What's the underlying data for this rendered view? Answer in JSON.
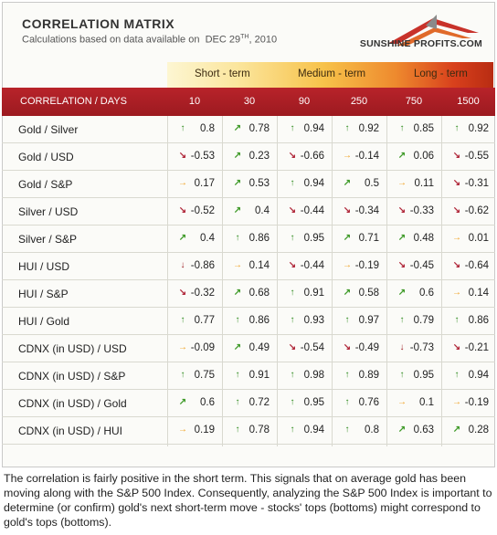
{
  "header": {
    "title": "CORRELATION MATRIX",
    "subtitle_prefix": "Calculations based on data available on",
    "date_main": "DEC 29",
    "date_sup": "TH",
    "date_year": ", 2010",
    "brand": "SUNSHINE PROFITS.COM"
  },
  "horizons": [
    "Short - term",
    "Medium - term",
    "Long - term"
  ],
  "columns": {
    "label": "CORRELATION / DAYS",
    "days": [
      "10",
      "30",
      "90",
      "250",
      "750",
      "1500"
    ]
  },
  "rows": [
    {
      "label": "Gold / Silver",
      "values": [
        "0.8",
        "0.78",
        "0.94",
        "0.92",
        "0.85",
        "0.92"
      ],
      "arrows": [
        "up",
        "up-right",
        "up",
        "up",
        "up",
        "up"
      ]
    },
    {
      "label": "Gold / USD",
      "values": [
        "-0.53",
        "0.23",
        "-0.66",
        "-0.14",
        "0.06",
        "-0.55"
      ],
      "arrows": [
        "down-right",
        "up-right",
        "down-right",
        "right",
        "up-right",
        "down-right"
      ]
    },
    {
      "label": "Gold / S&P",
      "values": [
        "0.17",
        "0.53",
        "0.94",
        "0.5",
        "0.11",
        "-0.31"
      ],
      "arrows": [
        "right",
        "up-right",
        "up",
        "up-right",
        "right",
        "down-right"
      ]
    },
    {
      "label": "Silver / USD",
      "values": [
        "-0.52",
        "0.4",
        "-0.44",
        "-0.34",
        "-0.33",
        "-0.62"
      ],
      "arrows": [
        "down-right",
        "up-right",
        "down-right",
        "down-right",
        "down-right",
        "down-right"
      ]
    },
    {
      "label": "Silver / S&P",
      "values": [
        "0.4",
        "0.86",
        "0.95",
        "0.71",
        "0.48",
        "0.01"
      ],
      "arrows": [
        "up-right",
        "up",
        "up",
        "up-right",
        "up-right",
        "right"
      ]
    },
    {
      "label": "HUI / USD",
      "values": [
        "-0.86",
        "0.14",
        "-0.44",
        "-0.19",
        "-0.45",
        "-0.64"
      ],
      "arrows": [
        "down",
        "right",
        "down-right",
        "right",
        "down-right",
        "down-right"
      ]
    },
    {
      "label": "HUI / S&P",
      "values": [
        "-0.32",
        "0.68",
        "0.91",
        "0.58",
        "0.6",
        "0.14"
      ],
      "arrows": [
        "down-right",
        "up-right",
        "up",
        "up-right",
        "up-right",
        "right"
      ]
    },
    {
      "label": "HUI / Gold",
      "values": [
        "0.77",
        "0.86",
        "0.93",
        "0.97",
        "0.79",
        "0.86"
      ],
      "arrows": [
        "up",
        "up",
        "up",
        "up",
        "up",
        "up"
      ]
    },
    {
      "label": "CDNX (in USD) / USD",
      "values": [
        "-0.09",
        "0.49",
        "-0.54",
        "-0.49",
        "-0.73",
        "-0.21"
      ],
      "arrows": [
        "right",
        "up-right",
        "down-right",
        "down-right",
        "down",
        "down-right"
      ]
    },
    {
      "label": "CDNX (in USD) / S&P",
      "values": [
        "0.75",
        "0.91",
        "0.98",
        "0.89",
        "0.95",
        "0.94"
      ],
      "arrows": [
        "up",
        "up",
        "up",
        "up",
        "up",
        "up"
      ]
    },
    {
      "label": "CDNX (in USD) / Gold",
      "values": [
        "0.6",
        "0.72",
        "0.95",
        "0.76",
        "0.1",
        "-0.19"
      ],
      "arrows": [
        "up-right",
        "up",
        "up",
        "up",
        "right",
        "right"
      ]
    },
    {
      "label": "CDNX (in USD) / HUI",
      "values": [
        "0.19",
        "0.78",
        "0.94",
        "0.8",
        "0.63",
        "0.28"
      ],
      "arrows": [
        "right",
        "up",
        "up",
        "up",
        "up-right",
        "up-right"
      ]
    }
  ],
  "arrow_colors": {
    "up": "#2e8b1e",
    "up-right": "#3f9a28",
    "right": "#f0a020",
    "down-right": "#b0283a",
    "down": "#9c1a20"
  },
  "footer": "The correlation is fairly positive in the short term. This signals that on average gold has been moving along with the S&P 500 Index. Consequently, analyzing the S&P 500 Index is important to determine (or confirm) gold's next short-term move - stocks' tops (bottoms) might correspond to gold's tops (bottoms)."
}
